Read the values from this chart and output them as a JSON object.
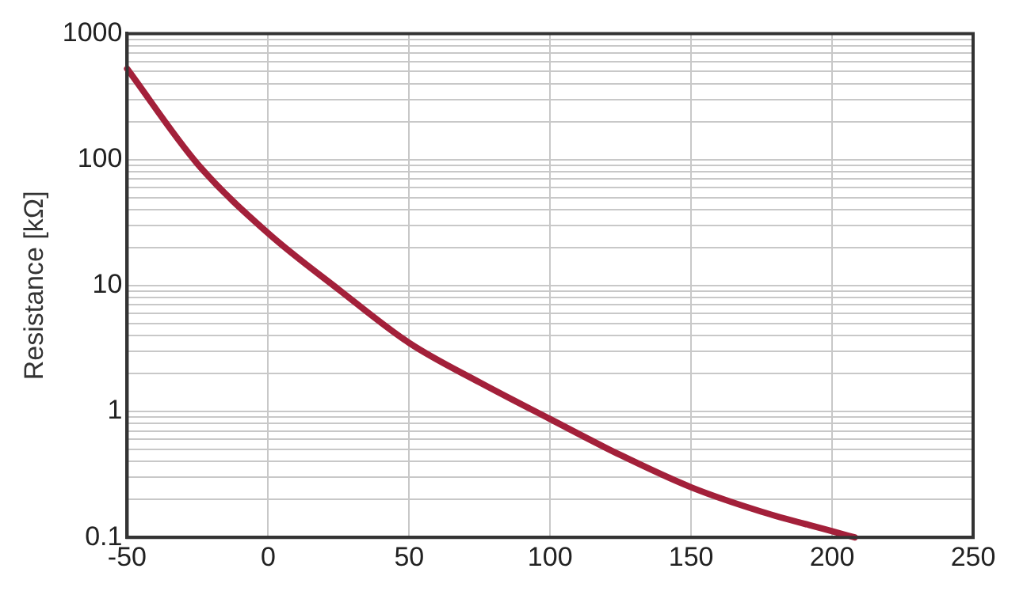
{
  "chart_data": {
    "type": "line",
    "ylabel": "Resistance [kΩ]",
    "log": "y",
    "grid": true,
    "marker": "none",
    "line_style": "solid",
    "legend": false,
    "xlim": [
      -50,
      250
    ],
    "xticks": [
      -50,
      0,
      50,
      100,
      150,
      200,
      250
    ],
    "ylim": [
      0.1,
      1000
    ],
    "yticks": [
      0.1,
      1,
      10,
      100,
      1000
    ],
    "series": [
      {
        "color": "#a3203a",
        "x": [
          -50,
          -25,
          0,
          25,
          50,
          75,
          100,
          125,
          150,
          175,
          200,
          208
        ],
        "values": [
          525,
          92,
          26,
          9.3,
          3.5,
          1.7,
          0.87,
          0.45,
          0.25,
          0.16,
          0.112,
          0.1
        ]
      }
    ]
  }
}
